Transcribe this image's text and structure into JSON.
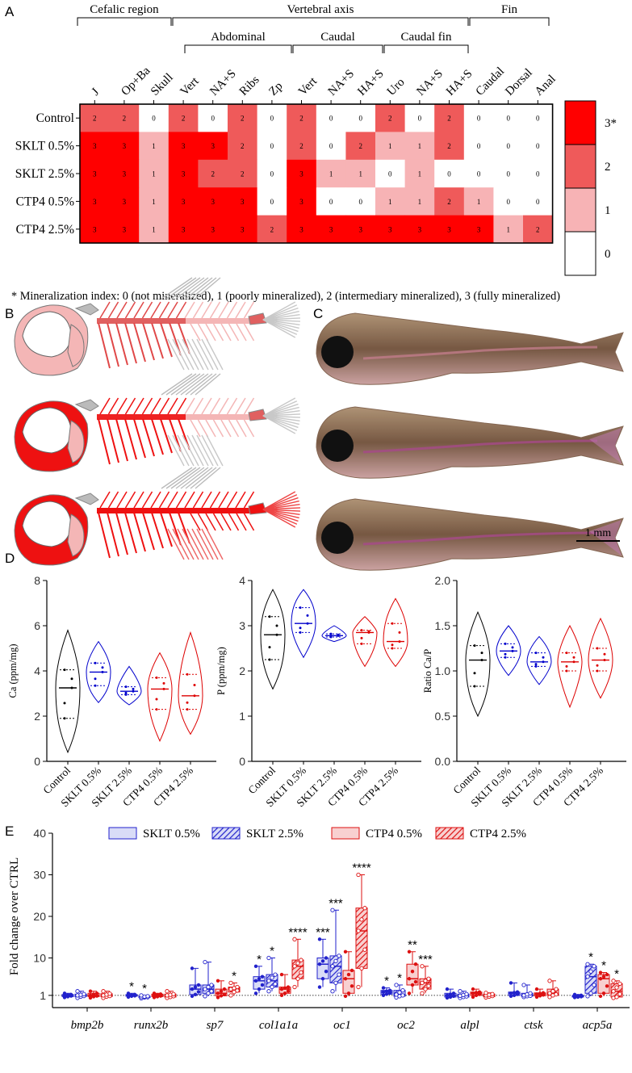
{
  "panels": {
    "A": "A",
    "B": "B",
    "C": "C",
    "D": "D",
    "E": "E"
  },
  "panelA": {
    "groups": [
      {
        "label": "Cefalic region"
      },
      {
        "label": "Vertebral axis"
      },
      {
        "label": "Fin"
      }
    ],
    "subgroups": [
      {
        "label": "Abdominal"
      },
      {
        "label": "Caudal"
      },
      {
        "label": "Caudal fin"
      }
    ],
    "columns": [
      "J",
      "Op+Ba",
      "Skull",
      "Vert",
      "NA+S",
      "Ribs",
      "Zp",
      "Vert",
      "NA+S",
      "HA+S",
      "Uro",
      "NA+S",
      "HA+S",
      "Caudal",
      "Dorsal",
      "Anal"
    ],
    "rows": [
      {
        "label": "Control",
        "values": [
          2,
          2,
          0,
          2,
          0,
          2,
          0,
          2,
          0,
          0,
          2,
          0,
          2,
          0,
          0,
          0
        ]
      },
      {
        "label": "SKLT 0.5%",
        "values": [
          3,
          3,
          1,
          3,
          3,
          2,
          0,
          2,
          0,
          2,
          1,
          1,
          2,
          0,
          0,
          0
        ]
      },
      {
        "label": "SKLT 2.5%",
        "values": [
          3,
          3,
          1,
          3,
          2,
          2,
          0,
          3,
          1,
          1,
          0,
          1,
          0,
          0,
          0,
          0
        ]
      },
      {
        "label": "CTP4 0.5%",
        "values": [
          3,
          3,
          1,
          3,
          3,
          3,
          0,
          3,
          0,
          0,
          1,
          1,
          2,
          1,
          0,
          0
        ]
      },
      {
        "label": "CTP4 2.5%",
        "values": [
          3,
          3,
          1,
          3,
          3,
          3,
          2,
          3,
          3,
          3,
          3,
          3,
          3,
          3,
          1,
          2
        ]
      }
    ],
    "legend": [
      {
        "label": "3*",
        "color": "#ff0000"
      },
      {
        "label": "2",
        "color": "#ef5a5a"
      },
      {
        "label": "1",
        "color": "#f7b3b5"
      },
      {
        "label": "0",
        "color": "#ffffff"
      }
    ],
    "footnote": "* Mineralization index: 0 (not mineralized), 1 (poorly mineralized), 2 (intermediary mineralized), 3 (fully mineralized)"
  },
  "panelC": {
    "scale_bar": "1 mm"
  },
  "chart_data": [
    {
      "type": "violin",
      "ylabel": "Ca (ppm/mg)",
      "ylim": [
        0,
        8
      ],
      "yticks": [
        0,
        2,
        4,
        6,
        8
      ],
      "categories": [
        "Control",
        "SKLT 0.5%",
        "SKLT 2.5%",
        "CTP4 0.5%",
        "CTP4 2.5%"
      ],
      "median": [
        3.25,
        3.95,
        3.1,
        3.2,
        2.9
      ],
      "q1": [
        1.9,
        3.35,
        2.95,
        2.3,
        2.3
      ],
      "q3": [
        4.05,
        4.35,
        3.3,
        3.7,
        3.85
      ],
      "min": [
        0.4,
        2.6,
        2.5,
        0.9,
        1.2
      ],
      "max": [
        5.8,
        5.3,
        4.2,
        4.8,
        5.7
      ],
      "colors": [
        "#000000",
        "#0000cc",
        "#0000cc",
        "#dd0000",
        "#dd0000"
      ]
    },
    {
      "type": "violin",
      "ylabel": "P (ppm/mg)",
      "ylim": [
        0,
        4
      ],
      "yticks": [
        0,
        1,
        2,
        3,
        4
      ],
      "categories": [
        "Control",
        "SKLT 0.5%",
        "SKLT 2.5%",
        "CTP4 0.5%",
        "CTP4 2.5%"
      ],
      "median": [
        2.8,
        3.05,
        2.78,
        2.85,
        2.65
      ],
      "q1": [
        2.25,
        2.85,
        2.75,
        2.6,
        2.5
      ],
      "q3": [
        3.2,
        3.4,
        2.82,
        2.9,
        3.05
      ],
      "min": [
        1.6,
        2.3,
        2.65,
        2.1,
        2.1
      ],
      "max": [
        3.8,
        3.8,
        3.0,
        3.2,
        3.6
      ],
      "colors": [
        "#000000",
        "#0000cc",
        "#0000cc",
        "#dd0000",
        "#dd0000"
      ]
    },
    {
      "type": "violin",
      "ylabel": "Ratio Ca/P",
      "ylim": [
        0,
        2
      ],
      "yticks": [
        0.0,
        0.5,
        1.0,
        1.5,
        2.0
      ],
      "categories": [
        "Control",
        "SKLT 0.5%",
        "SKLT 2.5%",
        "CTP4 0.5%",
        "CTP4 2.5%"
      ],
      "median": [
        1.12,
        1.22,
        1.1,
        1.1,
        1.12
      ],
      "q1": [
        0.83,
        1.15,
        1.05,
        1.0,
        1.0
      ],
      "q3": [
        1.28,
        1.3,
        1.2,
        1.2,
        1.25
      ],
      "min": [
        0.5,
        0.95,
        0.85,
        0.6,
        0.7
      ],
      "max": [
        1.65,
        1.5,
        1.38,
        1.5,
        1.58
      ],
      "colors": [
        "#000000",
        "#0000cc",
        "#0000cc",
        "#dd0000",
        "#dd0000"
      ]
    },
    {
      "type": "box",
      "ylabel": "Fold change over CTRL",
      "ylim": [
        0,
        40
      ],
      "yticks": [
        1,
        10,
        20,
        30,
        40
      ],
      "categories": [
        "bmp2b",
        "runx2b",
        "sp7",
        "col1a1a",
        "oc1",
        "oc2",
        "alpl",
        "ctsk",
        "acp5a"
      ],
      "series": [
        {
          "name": "SKLT 0.5%",
          "color": "#2222cc",
          "fill": "#d9dcf7",
          "hatch": false,
          "median": [
            1.0,
            1.0,
            2.5,
            4.5,
            8.5,
            1.8,
            1.0,
            1.5,
            0.8
          ],
          "q1": [
            0.7,
            0.8,
            1.2,
            2.5,
            5.0,
            1.3,
            0.6,
            1.0,
            0.6
          ],
          "q3": [
            1.2,
            1.2,
            3.5,
            5.5,
            10.0,
            2.2,
            1.5,
            1.8,
            1.0
          ],
          "min": [
            0.5,
            0.6,
            0.8,
            1.5,
            3.0,
            1.0,
            0.4,
            0.8,
            0.5
          ],
          "max": [
            1.5,
            1.5,
            7.5,
            8.0,
            14.5,
            2.8,
            2.5,
            4.0,
            1.2
          ],
          "sig": [
            "",
            "*",
            "",
            "*",
            "***",
            "*",
            "",
            "",
            ""
          ]
        },
        {
          "name": "SKLT 2.5%",
          "color": "#2222cc",
          "fill": "#d9dcf7",
          "hatch": true,
          "median": [
            1.0,
            0.6,
            2.5,
            4.5,
            8.0,
            1.2,
            0.9,
            1.0,
            5.5
          ],
          "q1": [
            0.7,
            0.5,
            1.5,
            3.0,
            4.0,
            0.8,
            0.6,
            0.8,
            1.5
          ],
          "q3": [
            1.3,
            0.8,
            3.5,
            6.0,
            10.5,
            2.2,
            1.3,
            1.5,
            8.0
          ],
          "min": [
            0.4,
            0.3,
            0.8,
            2.0,
            2.0,
            0.5,
            0.4,
            0.6,
            0.8
          ],
          "max": [
            2.0,
            1.0,
            9.0,
            10.0,
            21.5,
            3.5,
            2.0,
            3.5,
            8.5
          ],
          "sig": [
            "",
            "*",
            "",
            "*",
            "***",
            "*",
            "",
            "",
            "*"
          ]
        },
        {
          "name": "CTP4 0.5%",
          "color": "#dd1111",
          "fill": "#f8d0d0",
          "hatch": false,
          "median": [
            1.0,
            1.0,
            1.5,
            2.5,
            5.0,
            5.0,
            1.5,
            1.3,
            5.0
          ],
          "q1": [
            0.7,
            0.7,
            0.9,
            1.5,
            1.5,
            3.5,
            1.0,
            0.9,
            1.5
          ],
          "q3": [
            1.5,
            1.3,
            2.5,
            3.0,
            7.0,
            8.5,
            1.8,
            1.6,
            6.0
          ],
          "min": [
            0.4,
            0.5,
            0.5,
            1.0,
            0.8,
            1.5,
            0.6,
            0.6,
            0.8
          ],
          "max": [
            2.0,
            1.5,
            4.5,
            6.0,
            11.5,
            11.5,
            2.5,
            2.5,
            6.5
          ],
          "sig": [
            "",
            "",
            "",
            "",
            "",
            "**",
            "",
            "",
            "*"
          ]
        },
        {
          "name": "CTP4 2.5%",
          "color": "#dd1111",
          "fill": "#f8d0d0",
          "hatch": true,
          "median": [
            1.0,
            1.0,
            2.5,
            8.0,
            16.5,
            4.0,
            1.0,
            1.5,
            2.0
          ],
          "q1": [
            0.7,
            0.6,
            1.8,
            5.0,
            7.5,
            2.5,
            0.7,
            1.0,
            0.6
          ],
          "q3": [
            1.4,
            1.3,
            3.0,
            9.5,
            22.0,
            5.0,
            1.3,
            2.5,
            3.8
          ],
          "min": [
            0.4,
            0.4,
            1.0,
            3.0,
            3.0,
            1.5,
            0.5,
            0.6,
            0.4
          ],
          "max": [
            2.0,
            2.0,
            4.0,
            14.5,
            30.0,
            8.0,
            1.6,
            4.5,
            4.5
          ],
          "sig": [
            "",
            "",
            "*",
            "****",
            "****",
            "***",
            "",
            "",
            "*"
          ]
        }
      ]
    }
  ]
}
